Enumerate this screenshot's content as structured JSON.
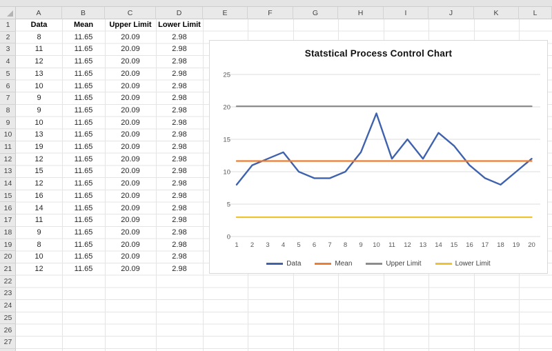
{
  "sheet": {
    "column_letters": [
      "A",
      "B",
      "C",
      "D",
      "E",
      "F",
      "G",
      "H",
      "I",
      "J",
      "K",
      "L"
    ],
    "row_numbers": [
      "1",
      "2",
      "3",
      "4",
      "5",
      "6",
      "7",
      "8",
      "9",
      "10",
      "11",
      "12",
      "13",
      "14",
      "15",
      "16",
      "17",
      "18",
      "19",
      "20",
      "21",
      "22",
      "23",
      "24",
      "25",
      "26",
      "27"
    ],
    "table": {
      "headers": [
        "Data",
        "Mean",
        "Upper Limit",
        "Lower Limit"
      ],
      "rows": [
        [
          "8",
          "11.65",
          "20.09",
          "2.98"
        ],
        [
          "11",
          "11.65",
          "20.09",
          "2.98"
        ],
        [
          "12",
          "11.65",
          "20.09",
          "2.98"
        ],
        [
          "13",
          "11.65",
          "20.09",
          "2.98"
        ],
        [
          "10",
          "11.65",
          "20.09",
          "2.98"
        ],
        [
          "9",
          "11.65",
          "20.09",
          "2.98"
        ],
        [
          "9",
          "11.65",
          "20.09",
          "2.98"
        ],
        [
          "10",
          "11.65",
          "20.09",
          "2.98"
        ],
        [
          "13",
          "11.65",
          "20.09",
          "2.98"
        ],
        [
          "19",
          "11.65",
          "20.09",
          "2.98"
        ],
        [
          "12",
          "11.65",
          "20.09",
          "2.98"
        ],
        [
          "15",
          "11.65",
          "20.09",
          "2.98"
        ],
        [
          "12",
          "11.65",
          "20.09",
          "2.98"
        ],
        [
          "16",
          "11.65",
          "20.09",
          "2.98"
        ],
        [
          "14",
          "11.65",
          "20.09",
          "2.98"
        ],
        [
          "11",
          "11.65",
          "20.09",
          "2.98"
        ],
        [
          "9",
          "11.65",
          "20.09",
          "2.98"
        ],
        [
          "8",
          "11.65",
          "20.09",
          "2.98"
        ],
        [
          "10",
          "11.65",
          "20.09",
          "2.98"
        ],
        [
          "12",
          "11.65",
          "20.09",
          "2.98"
        ]
      ]
    }
  },
  "chart_data": {
    "type": "line",
    "title": "Statstical Process Control Chart",
    "x": [
      1,
      2,
      3,
      4,
      5,
      6,
      7,
      8,
      9,
      10,
      11,
      12,
      13,
      14,
      15,
      16,
      17,
      18,
      19,
      20
    ],
    "series": [
      {
        "name": "Data",
        "color": "#3F62AD",
        "values": [
          8,
          11,
          12,
          13,
          10,
          9,
          9,
          10,
          13,
          19,
          12,
          15,
          12,
          16,
          14,
          11,
          9,
          8,
          10,
          12
        ]
      },
      {
        "name": "Mean",
        "color": "#ED7D31",
        "constant": 11.65
      },
      {
        "name": "Upper Limit",
        "color": "#8C8C8C",
        "constant": 20.09
      },
      {
        "name": "Lower Limit",
        "color": "#EFC330",
        "constant": 2.98
      }
    ],
    "y_ticks": [
      0,
      5,
      10,
      15,
      20,
      25
    ],
    "ylim": [
      0,
      25
    ],
    "xlabel": "",
    "ylabel": "",
    "grid": true,
    "legend_position": "bottom"
  }
}
